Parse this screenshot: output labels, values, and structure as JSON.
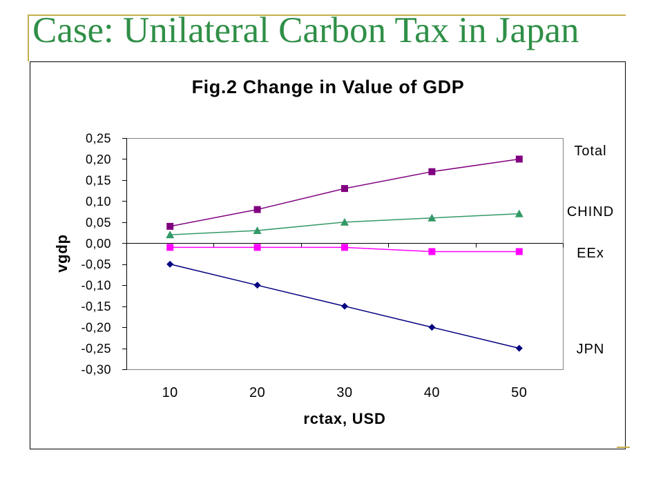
{
  "slide": {
    "title": "Case: Unilateral Carbon Tax in Japan",
    "title_color": "#2F8F47",
    "rule_color": "#C3AD4B"
  },
  "chart_data": {
    "type": "line",
    "title": "Fig.2 Change in Value of GDP",
    "xlabel": "rctax, USD",
    "ylabel": "vgdp",
    "categories": [
      "10",
      "20",
      "30",
      "40",
      "50"
    ],
    "ylim": [
      -0.3,
      0.25
    ],
    "yticks": [
      0.25,
      0.2,
      0.15,
      0.1,
      0.05,
      0.0,
      -0.05,
      -0.1,
      -0.15,
      -0.2,
      -0.25,
      -0.3
    ],
    "ytick_labels": [
      "0,25",
      "0,20",
      "0,15",
      "0,10",
      "0,05",
      "0,00",
      "-0,05",
      "-0,10",
      "-0,15",
      "-0,20",
      "-0,25",
      "-0,30"
    ],
    "grid": false,
    "legend": "right",
    "series": [
      {
        "name": "Total",
        "values": [
          0.04,
          0.08,
          0.13,
          0.17,
          0.2
        ],
        "color": "#800080",
        "marker": "square"
      },
      {
        "name": "CHIND",
        "values": [
          0.02,
          0.03,
          0.05,
          0.06,
          0.07
        ],
        "color": "#339966",
        "marker": "triangle"
      },
      {
        "name": "EEx",
        "values": [
          -0.01,
          -0.01,
          -0.01,
          -0.02,
          -0.02
        ],
        "color": "#FF00FF",
        "marker": "square"
      },
      {
        "name": "JPN",
        "values": [
          -0.05,
          -0.1,
          -0.15,
          -0.2,
          -0.25
        ],
        "color": "#000080",
        "marker": "diamond"
      }
    ]
  }
}
